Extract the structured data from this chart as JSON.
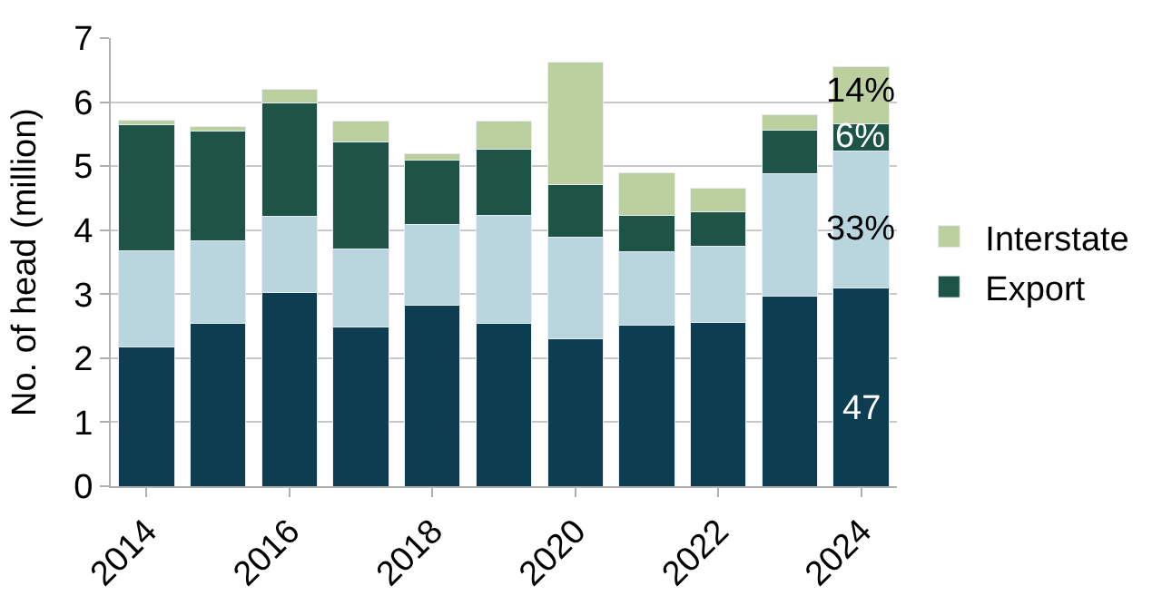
{
  "chart_data": {
    "type": "bar",
    "stacked": true,
    "ylabel": "No. of head (million)",
    "categories": [
      "2014",
      null,
      "2016",
      null,
      "2018",
      null,
      "2020",
      null,
      "2022",
      null,
      "2024"
    ],
    "series": [
      {
        "color": "#0d3d50",
        "values": [
          2.18,
          2.54,
          3.03,
          2.48,
          2.82,
          2.54,
          2.3,
          2.52,
          2.56,
          2.97,
          3.09
        ]
      },
      {
        "color": "#b9d6df",
        "values": [
          1.5,
          1.3,
          1.19,
          1.23,
          1.27,
          1.69,
          1.59,
          1.15,
          1.19,
          1.91,
          2.15
        ]
      },
      {
        "name": "Export",
        "color": "#1d5446",
        "values": [
          1.97,
          1.71,
          1.77,
          1.67,
          1.0,
          1.04,
          0.82,
          0.56,
          0.53,
          0.68,
          0.42
        ]
      },
      {
        "name": "Interstate",
        "color": "#bccf9e",
        "values": [
          0.07,
          0.07,
          0.21,
          0.32,
          0.11,
          0.43,
          1.92,
          0.67,
          0.37,
          0.24,
          0.89
        ]
      }
    ],
    "annotations": [
      {
        "text": "47",
        "x": "2024",
        "y": 1.2
      },
      {
        "text": "33%",
        "x": "2024",
        "y": 4.0
      },
      {
        "text": "6%",
        "x": "2024",
        "y": 5.45
      },
      {
        "text": "14%",
        "x": "2024",
        "y": 6.15
      }
    ],
    "ylim": [
      0,
      7
    ],
    "yticks": [
      0,
      1,
      2,
      3,
      4,
      5,
      6,
      7
    ],
    "grid": "y",
    "legend": "right"
  }
}
